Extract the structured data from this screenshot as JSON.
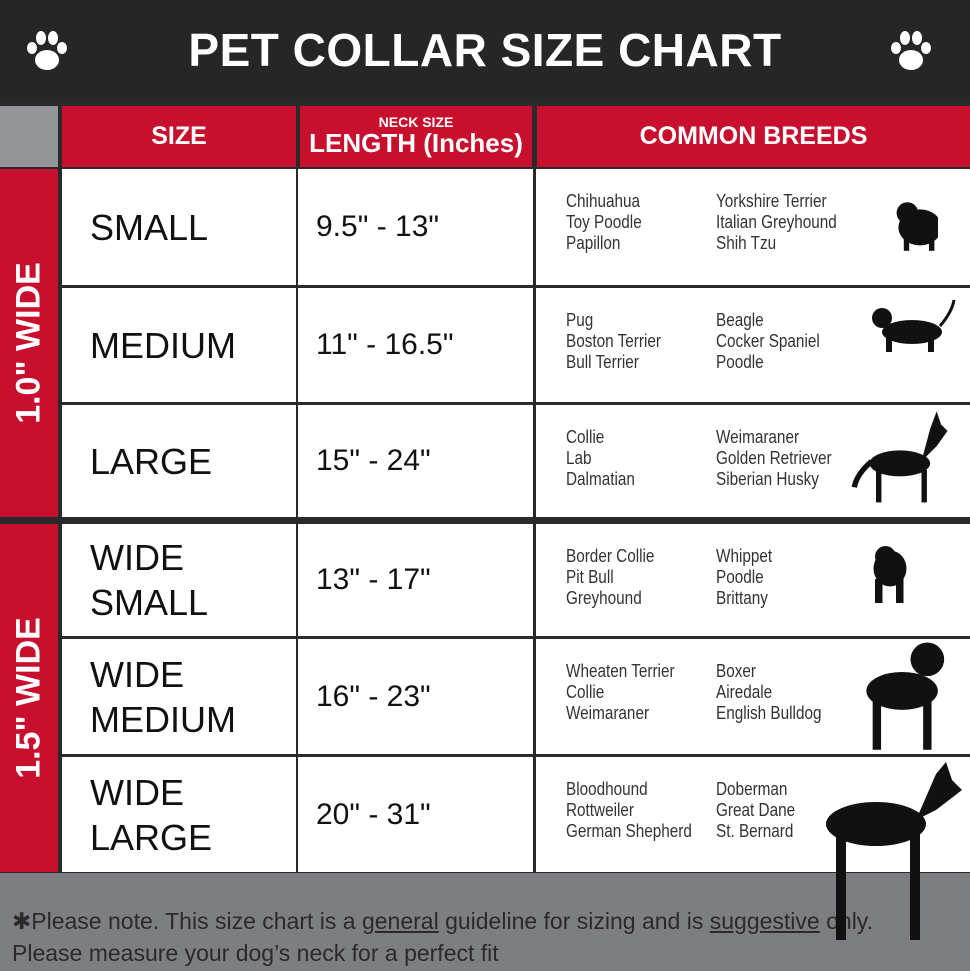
{
  "title": "PET COLLAR SIZE CHART",
  "headers": {
    "size": "SIZE",
    "length_top": "NECK SIZE",
    "length": "LENGTH (Inches)",
    "breeds": "COMMON BREEDS"
  },
  "groups": [
    {
      "label": "1.0\" WIDE"
    },
    {
      "label": "1.5\" WIDE"
    }
  ],
  "rows": [
    {
      "size": "SMALL",
      "length": "9.5\" - 13\"",
      "breeds_a": [
        "Chihuahua",
        "Toy Poodle",
        "Papillon"
      ],
      "breeds_b": [
        "Yorkshire Terrier",
        "Italian Greyhound",
        "Shih Tzu"
      ],
      "icon": "pomeranian-silhouette-icon"
    },
    {
      "size": "MEDIUM",
      "length": "11\" - 16.5\"",
      "breeds_a": [
        "Pug",
        "Boston Terrier",
        "Bull Terrier"
      ],
      "breeds_b": [
        "Beagle",
        "Cocker Spaniel",
        "Poodle"
      ],
      "icon": "dachshund-silhouette-icon"
    },
    {
      "size": "LARGE",
      "length": "15\" - 24\"",
      "breeds_a": [
        "Collie",
        "Lab",
        "Dalmatian"
      ],
      "breeds_b": [
        "Weimaraner",
        "Golden Retriever",
        "Siberian Husky"
      ],
      "icon": "shepherd-silhouette-icon"
    },
    {
      "size": "WIDE SMALL",
      "length": "13\" - 17\"",
      "breeds_a": [
        "Border Collie",
        "Pit Bull",
        "Greyhound"
      ],
      "breeds_b": [
        "Whippet",
        "Poodle",
        "Brittany"
      ],
      "icon": "bulldog-silhouette-icon"
    },
    {
      "size": "WIDE MEDIUM",
      "length": "16\" - 23\"",
      "breeds_a": [
        "Wheaten Terrier",
        "Collie",
        "Weimaraner"
      ],
      "breeds_b": [
        "Boxer",
        "Airedale",
        "English Bulldog"
      ],
      "icon": "pitbull-silhouette-icon"
    },
    {
      "size": "WIDE LARGE",
      "length": "20\" - 31\"",
      "breeds_a": [
        "Bloodhound",
        "Rottweiler",
        "German Shepherd"
      ],
      "breeds_b": [
        "Doberman",
        "Great Dane",
        "St. Bernard"
      ],
      "icon": "doberman-silhouette-icon"
    }
  ],
  "footer": {
    "p1": "✱Please note. This size chart is a ",
    "u1": "general",
    "p2": " guideline for sizing and is ",
    "u2": "suggestive",
    "p3": " only.",
    "line2": "Please measure your dog’s neck for a perfect fit"
  },
  "colors": {
    "header": "#262626",
    "accent": "#c8102e",
    "corner": "#939598",
    "footer": "#7d7e82"
  }
}
